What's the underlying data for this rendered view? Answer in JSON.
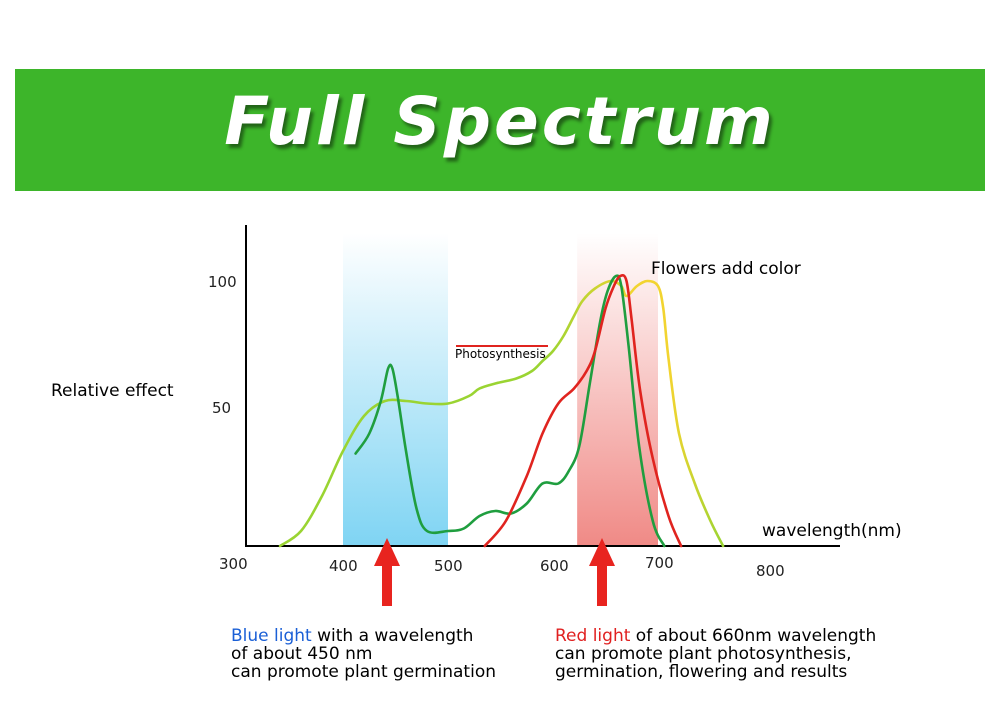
{
  "title": "Full Spectrum",
  "chart_data": {
    "type": "line",
    "title": "",
    "xlabel": "wavelength(nm)",
    "ylabel": "Relative effect",
    "x_ticks": [
      "300",
      "400",
      "500",
      "600",
      "700",
      "800"
    ],
    "y_ticks": [
      "100",
      "50"
    ],
    "xlim": [
      300,
      860
    ],
    "ylim": [
      0,
      120
    ],
    "annotations": {
      "photosynthesis": "Photosynthesis",
      "flowers": "Flowers add color"
    },
    "bands": [
      {
        "name": "blue-band",
        "x_range": [
          400,
          500
        ],
        "color": "#7fd4f3"
      },
      {
        "name": "red-band",
        "x_range": [
          623,
          700
        ],
        "color": "#f08a86"
      }
    ],
    "series": [
      {
        "color": "#9ad432",
        "gradient_end": "#f2d430",
        "points": [
          [
            340,
            0
          ],
          [
            360,
            6
          ],
          [
            380,
            20
          ],
          [
            400,
            38
          ],
          [
            420,
            52
          ],
          [
            440,
            58
          ],
          [
            460,
            58
          ],
          [
            480,
            57
          ],
          [
            500,
            57
          ],
          [
            520,
            60
          ],
          [
            530,
            63
          ],
          [
            545,
            65
          ],
          [
            565,
            67
          ],
          [
            580,
            70
          ],
          [
            590,
            74
          ],
          [
            600,
            78
          ],
          [
            610,
            84
          ],
          [
            620,
            92
          ],
          [
            628,
            98
          ],
          [
            640,
            103
          ],
          [
            655,
            106
          ],
          [
            665,
            104
          ],
          [
            670,
            100
          ],
          [
            680,
            104
          ],
          [
            690,
            106
          ],
          [
            700,
            104
          ],
          [
            705,
            95
          ],
          [
            710,
            75
          ],
          [
            720,
            45
          ],
          [
            735,
            25
          ],
          [
            750,
            10
          ],
          [
            762,
            0
          ]
        ]
      },
      {
        "color": "#1f9e3f",
        "points": [
          [
            412,
            37
          ],
          [
            425,
            45
          ],
          [
            436,
            58
          ],
          [
            443,
            71
          ],
          [
            447,
            71
          ],
          [
            452,
            60
          ],
          [
            460,
            38
          ],
          [
            470,
            15
          ],
          [
            480,
            6
          ],
          [
            500,
            6
          ],
          [
            515,
            7
          ],
          [
            530,
            12
          ],
          [
            545,
            14
          ],
          [
            560,
            13
          ],
          [
            575,
            17
          ],
          [
            590,
            25
          ],
          [
            605,
            25
          ],
          [
            615,
            30
          ],
          [
            625,
            40
          ],
          [
            635,
            65
          ],
          [
            645,
            90
          ],
          [
            652,
            102
          ],
          [
            660,
            108
          ],
          [
            665,
            104
          ],
          [
            672,
            80
          ],
          [
            682,
            40
          ],
          [
            695,
            10
          ],
          [
            706,
            0
          ]
        ]
      },
      {
        "color": "#e0241f",
        "points": [
          [
            535,
            0
          ],
          [
            555,
            10
          ],
          [
            575,
            28
          ],
          [
            590,
            45
          ],
          [
            605,
            57
          ],
          [
            620,
            63
          ],
          [
            632,
            70
          ],
          [
            640,
            78
          ],
          [
            650,
            95
          ],
          [
            658,
            104
          ],
          [
            664,
            108
          ],
          [
            670,
            106
          ],
          [
            675,
            90
          ],
          [
            683,
            62
          ],
          [
            695,
            35
          ],
          [
            710,
            12
          ],
          [
            722,
            0
          ]
        ]
      }
    ]
  },
  "captions": {
    "blue": {
      "highlight": "Blue light",
      "line1_rest": " with a wavelength",
      "line2": "of about 450 nm",
      "line3": "can promote plant germination"
    },
    "red": {
      "highlight": "Red light",
      "line1_rest": " of about 660nm wavelength",
      "line2": "can promote plant photosynthesis,",
      "line3": "germination, flowering and results"
    }
  },
  "colors": {
    "banner": "#3db52a",
    "arrow": "#e8241f",
    "blue_text": "#1a5fd6",
    "red_text": "#e02020"
  }
}
